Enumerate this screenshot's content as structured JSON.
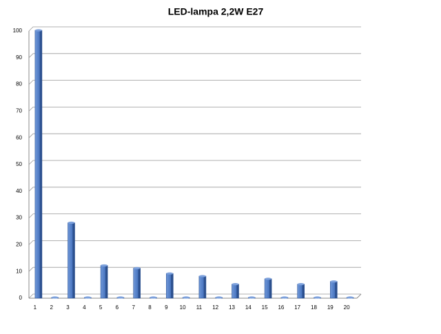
{
  "chart_data": {
    "type": "bar",
    "title": "LED-lampa 2,2W E27",
    "categories": [
      "1",
      "2",
      "3",
      "4",
      "5",
      "6",
      "7",
      "8",
      "9",
      "10",
      "11",
      "12",
      "13",
      "14",
      "15",
      "16",
      "17",
      "18",
      "19",
      "20"
    ],
    "values": [
      100,
      0,
      28,
      0,
      12,
      0,
      11,
      0,
      9,
      0,
      8,
      0,
      5,
      0,
      7,
      0,
      5,
      0,
      6,
      0
    ],
    "color": "#4a76c0",
    "ylim": [
      0,
      100
    ],
    "yticks": [
      0,
      10,
      20,
      30,
      40,
      50,
      60,
      70,
      80,
      90,
      100
    ],
    "grid": true
  }
}
